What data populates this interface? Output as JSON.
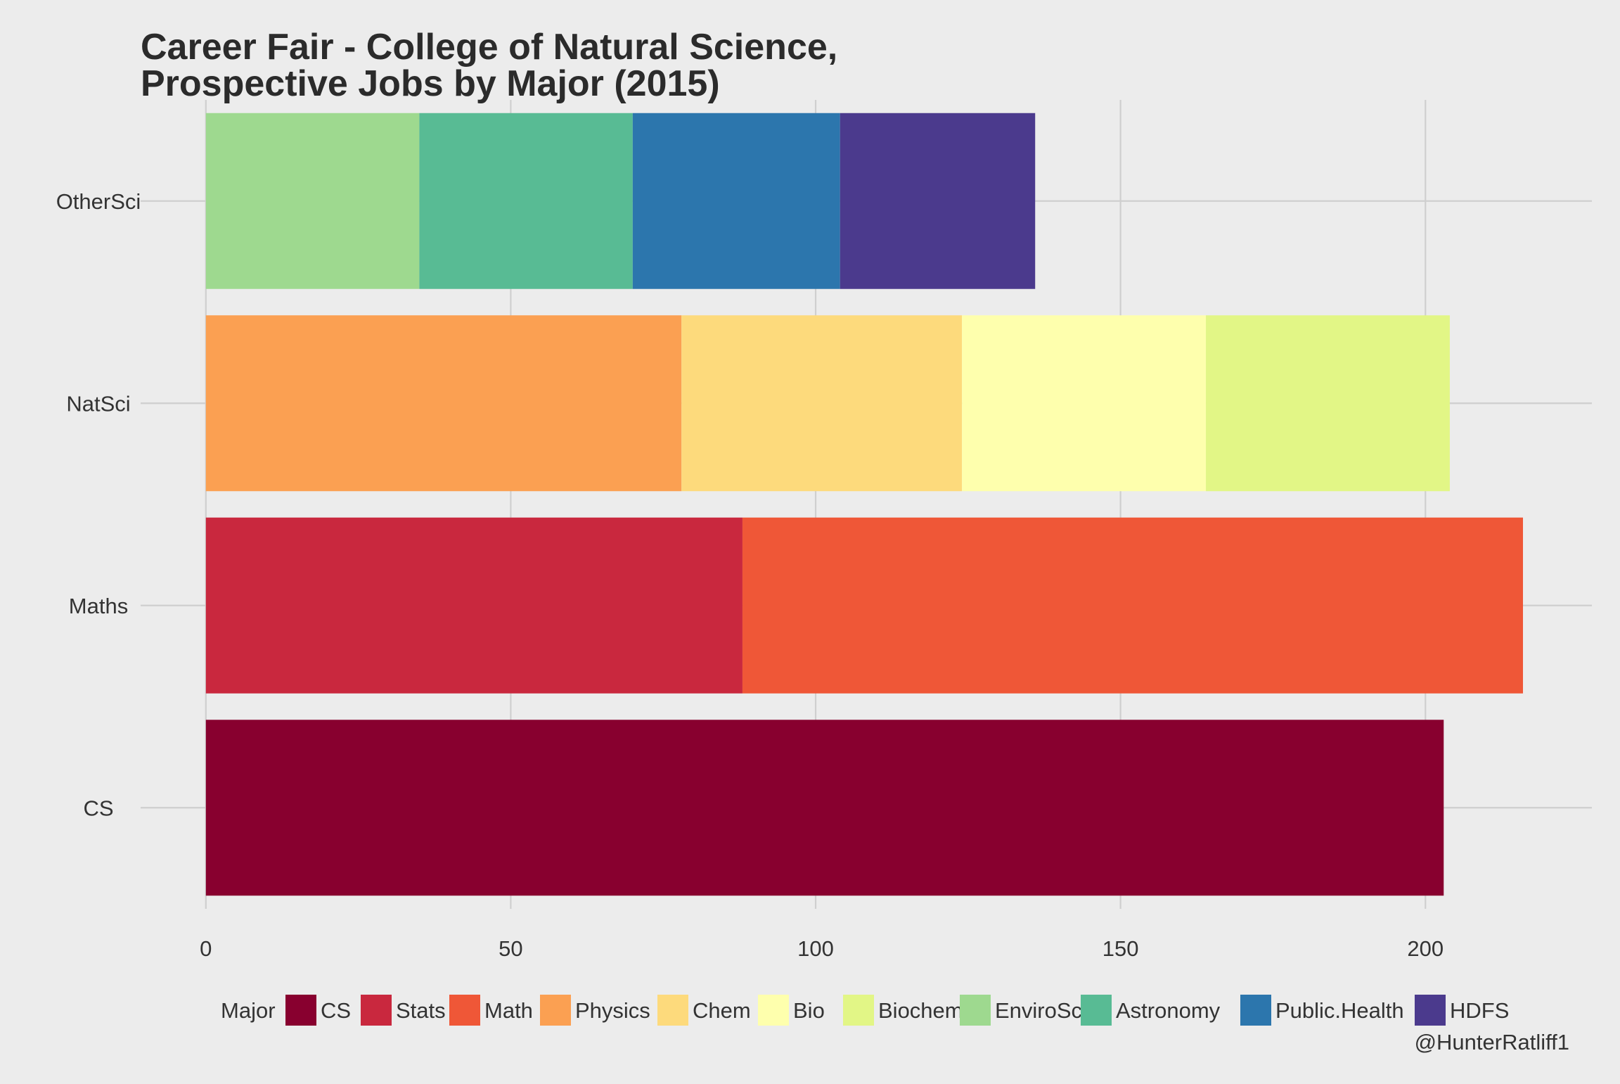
{
  "chart_data": {
    "type": "bar",
    "orientation": "horizontal",
    "stacked": true,
    "title": "Career Fair - College of Natural Science,\nProspective Jobs by Major (2015)",
    "title_lines": [
      "Career Fair - College of Natural Science,",
      "Prospective Jobs by Major (2015)"
    ],
    "xlabel": "",
    "ylabel": "",
    "xlim": [
      -10.7,
      227.3
    ],
    "x_ticks": [
      0,
      50,
      100,
      150,
      200
    ],
    "categories": [
      "OtherSci",
      "NatSci",
      "Maths",
      "CS"
    ],
    "grid": true,
    "legend_title": "Major",
    "legend_position": "bottom",
    "credit": "@HunterRatliff1",
    "series": [
      {
        "name": "CS",
        "color": "#88002f",
        "values": [
          0,
          0,
          0,
          203
        ]
      },
      {
        "name": "Stats",
        "color": "#c9283e",
        "values": [
          0,
          0,
          88,
          0
        ]
      },
      {
        "name": "Math",
        "color": "#ef5737",
        "values": [
          0,
          0,
          128,
          0
        ]
      },
      {
        "name": "Physics",
        "color": "#fba052",
        "values": [
          0,
          78,
          0,
          0
        ]
      },
      {
        "name": "Chem",
        "color": "#fdda7c",
        "values": [
          0,
          46,
          0,
          0
        ]
      },
      {
        "name": "Bio",
        "color": "#feffad",
        "values": [
          0,
          40,
          0,
          0
        ]
      },
      {
        "name": "Biochem",
        "color": "#e2f686",
        "values": [
          0,
          40,
          0,
          0
        ]
      },
      {
        "name": "EnviroSci",
        "color": "#9ed98f",
        "values": [
          35,
          0,
          0,
          0
        ]
      },
      {
        "name": "Astronomy",
        "color": "#58bb94",
        "values": [
          35,
          0,
          0,
          0
        ]
      },
      {
        "name": "Public.Health",
        "color": "#2c76ad",
        "values": [
          34,
          0,
          0,
          0
        ]
      },
      {
        "name": "HDFS",
        "color": "#4b3a8d",
        "values": [
          32,
          0,
          0,
          0
        ]
      }
    ]
  }
}
